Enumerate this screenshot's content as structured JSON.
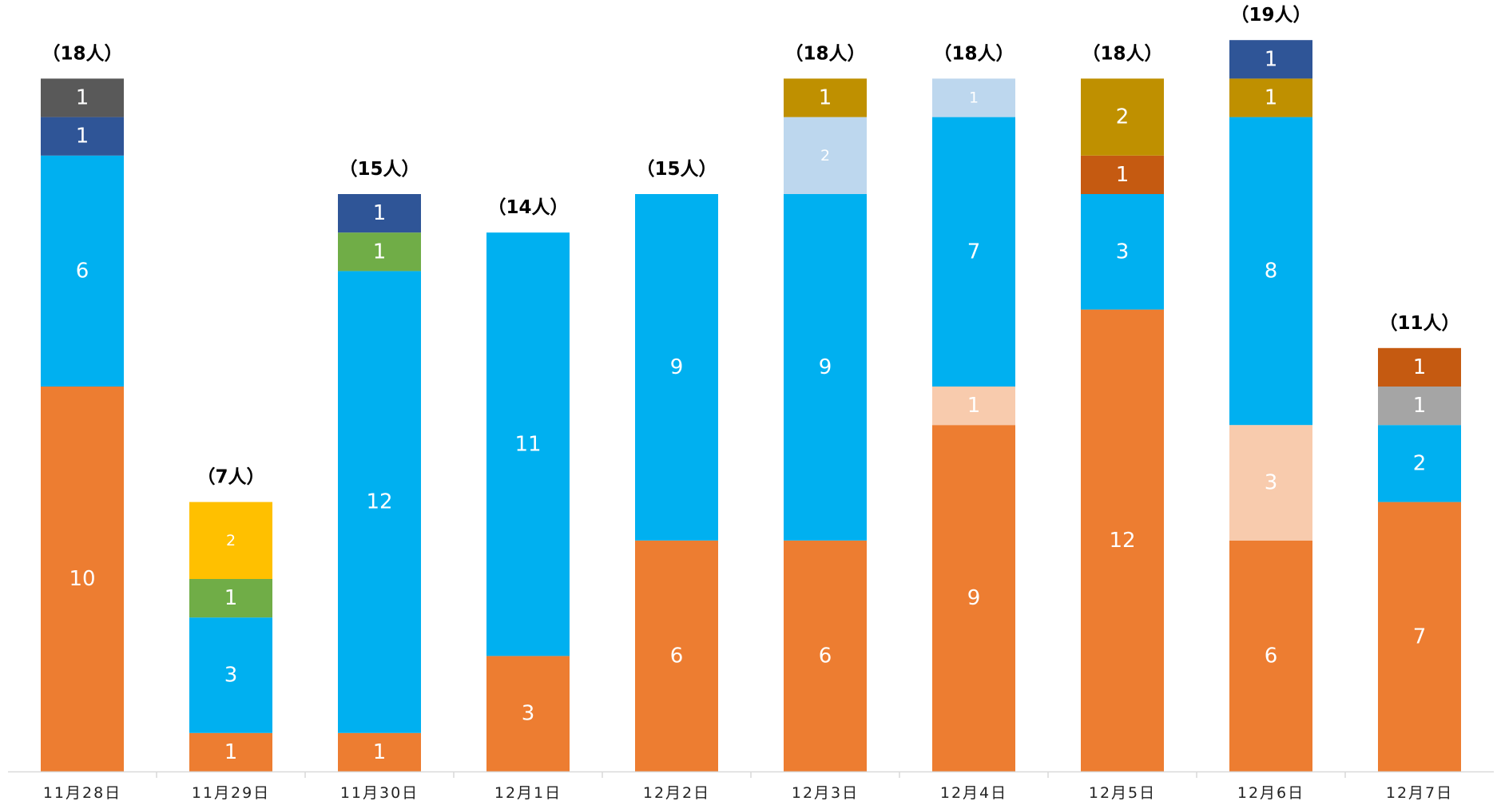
{
  "chart_data": {
    "type": "bar",
    "stacked": true,
    "categories": [
      "11月28日",
      "11月29日",
      "11月30日",
      "12月1日",
      "12月2日",
      "12月3日",
      "12月4日",
      "12月5日",
      "12月6日",
      "12月7日"
    ],
    "totals": [
      18,
      7,
      15,
      14,
      15,
      18,
      18,
      18,
      19,
      11
    ],
    "total_labels": [
      "（18人）",
      "（7人）",
      "（15人）",
      "（14人）",
      "（15人）",
      "（18人）",
      "（18人）",
      "（18人）",
      "（19人）",
      "（11人）"
    ],
    "ylim": [
      0,
      19
    ],
    "grid": false,
    "legend": "none",
    "series": [
      {
        "color": "#ED7D31",
        "values": [
          10,
          1,
          1,
          3,
          6,
          6,
          9,
          12,
          6,
          7
        ]
      },
      {
        "color": "#F8CBAD",
        "values": [
          0,
          0,
          0,
          0,
          0,
          0,
          1,
          0,
          3,
          0
        ]
      },
      {
        "color": "#00B0F0",
        "values": [
          6,
          3,
          12,
          11,
          9,
          9,
          7,
          3,
          8,
          2
        ]
      },
      {
        "color": "#BDD7EE",
        "values": [
          0,
          0,
          0,
          0,
          0,
          2,
          1,
          0,
          0,
          0
        ]
      },
      {
        "color": "#A5A5A5",
        "values": [
          0,
          0,
          0,
          0,
          0,
          0,
          0,
          0,
          0,
          1
        ]
      },
      {
        "color": "#C55A11",
        "values": [
          0,
          0,
          0,
          0,
          0,
          0,
          0,
          1,
          0,
          1
        ]
      },
      {
        "color": "#BF9000",
        "values": [
          0,
          0,
          0,
          0,
          0,
          1,
          0,
          2,
          1,
          0
        ]
      },
      {
        "color": "#70AD47",
        "values": [
          0,
          1,
          1,
          0,
          0,
          0,
          0,
          0,
          0,
          0
        ]
      },
      {
        "color": "#FFC000",
        "values": [
          0,
          2,
          0,
          0,
          0,
          0,
          0,
          0,
          0,
          0
        ]
      },
      {
        "color": "#2F5597",
        "values": [
          1,
          0,
          1,
          0,
          0,
          0,
          0,
          0,
          1,
          0
        ]
      },
      {
        "color": "#595959",
        "values": [
          1,
          0,
          0,
          0,
          0,
          0,
          0,
          0,
          0,
          0
        ]
      }
    ],
    "small_label_colors": [
      "#BDD7EE",
      "#FFC000"
    ]
  }
}
